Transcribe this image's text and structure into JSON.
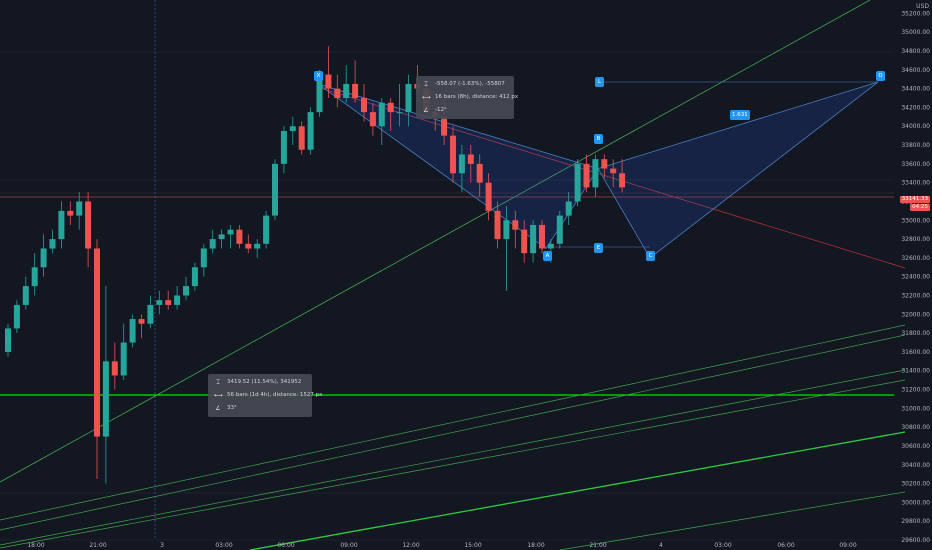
{
  "axis": {
    "currency": "USD",
    "price_ticks": [
      "35200.00",
      "35000.00",
      "34800.00",
      "34600.00",
      "34400.00",
      "34200.00",
      "34000.00",
      "33800.00",
      "33600.00",
      "33400.00",
      "33200.00",
      "33000.00",
      "32800.00",
      "32600.00",
      "32400.00",
      "32200.00",
      "32000.00",
      "31800.00",
      "31600.00",
      "31400.00",
      "31200.00",
      "31000.00",
      "30800.00",
      "30600.00",
      "30400.00",
      "30200.00",
      "30000.00",
      "29800.00",
      "29600.00"
    ],
    "time_ticks": [
      "18:00",
      "21:00",
      "3",
      "03:00",
      "06:00",
      "09:00",
      "12:00",
      "15:00",
      "18:00",
      "21:00",
      "4",
      "03:00",
      "06:00",
      "09:00"
    ],
    "current_price": "33141.33",
    "countdown": "04:25"
  },
  "measure_boxes": [
    {
      "price_line": "-558.07 (-1.63%), -55807",
      "bars_line": "16 bars (8h), distance: 412 px",
      "angle_line": "-12°"
    },
    {
      "price_line": "3419.52 (11.54%), 341952",
      "bars_line": "56 bars (1d 4h), distance: 1527 px",
      "angle_line": "33°"
    }
  ],
  "pattern_labels": {
    "X": "X",
    "A": "A",
    "B": "B",
    "C": "C",
    "D": "D",
    "L": "L",
    "E": "E",
    "ratio": "1.631"
  },
  "colors": {
    "up": "#26a69a",
    "down": "#ef5350",
    "bg": "#131722",
    "pattern_fill": "#2962ff",
    "green_line": "#00e600"
  },
  "chart_data": {
    "type": "candlestick",
    "timeframe": "30m",
    "y_range": [
      29600,
      35300
    ],
    "candles": [
      [
        31600,
        31900,
        31550,
        31850
      ],
      [
        31850,
        32150,
        31800,
        32100
      ],
      [
        32100,
        32400,
        32050,
        32300
      ],
      [
        32300,
        32650,
        32200,
        32500
      ],
      [
        32500,
        32850,
        32400,
        32700
      ],
      [
        32700,
        32900,
        32650,
        32800
      ],
      [
        32800,
        33200,
        32700,
        33100
      ],
      [
        33100,
        33200,
        32950,
        33050
      ],
      [
        33050,
        33300,
        32900,
        33200
      ],
      [
        33200,
        33300,
        32500,
        32700
      ],
      [
        32700,
        32800,
        30250,
        30700
      ],
      [
        30700,
        32300,
        30200,
        31500
      ],
      [
        31500,
        31700,
        31200,
        31350
      ],
      [
        31350,
        31900,
        31300,
        31700
      ],
      [
        31700,
        32000,
        31650,
        31950
      ],
      [
        31950,
        32000,
        31750,
        31900
      ],
      [
        31900,
        32200,
        31850,
        32100
      ],
      [
        32100,
        32250,
        32000,
        32150
      ],
      [
        32150,
        32250,
        32050,
        32100
      ],
      [
        32100,
        32300,
        32050,
        32200
      ],
      [
        32200,
        32400,
        32150,
        32300
      ],
      [
        32300,
        32550,
        32250,
        32500
      ],
      [
        32500,
        32750,
        32400,
        32700
      ],
      [
        32700,
        32900,
        32650,
        32800
      ],
      [
        32800,
        32900,
        32700,
        32850
      ],
      [
        32850,
        32950,
        32700,
        32900
      ],
      [
        32900,
        32950,
        32700,
        32750
      ],
      [
        32750,
        32850,
        32650,
        32700
      ],
      [
        32700,
        32800,
        32600,
        32750
      ],
      [
        32750,
        33100,
        32700,
        33050
      ],
      [
        33050,
        33650,
        33000,
        33600
      ],
      [
        33600,
        34000,
        33500,
        33950
      ],
      [
        33950,
        34100,
        33800,
        34000
      ],
      [
        34000,
        34050,
        33700,
        33750
      ],
      [
        33750,
        34200,
        33700,
        34150
      ],
      [
        34150,
        34600,
        34100,
        34550
      ],
      [
        34550,
        34850,
        34300,
        34400
      ],
      [
        34400,
        34550,
        34200,
        34300
      ],
      [
        34300,
        34650,
        34250,
        34450
      ],
      [
        34450,
        34700,
        34250,
        34300
      ],
      [
        34300,
        34450,
        34050,
        34150
      ],
      [
        34150,
        34250,
        33900,
        34000
      ],
      [
        34000,
        34300,
        33800,
        34250
      ],
      [
        34250,
        34300,
        33950,
        34150
      ],
      [
        34150,
        34450,
        34000,
        34150
      ],
      [
        34150,
        34550,
        34000,
        34450
      ],
      [
        34450,
        34650,
        34350,
        34400
      ],
      [
        34400,
        34450,
        34100,
        34150
      ],
      [
        34150,
        34200,
        33950,
        34100
      ],
      [
        34100,
        34300,
        33800,
        33900
      ],
      [
        33900,
        34000,
        33400,
        33500
      ],
      [
        33500,
        33800,
        33300,
        33700
      ],
      [
        33700,
        33800,
        33400,
        33600
      ],
      [
        33600,
        33700,
        33250,
        33400
      ],
      [
        33400,
        33500,
        33000,
        33100
      ],
      [
        33100,
        33200,
        32700,
        32800
      ],
      [
        32800,
        33150,
        32250,
        33000
      ],
      [
        33000,
        33100,
        32700,
        32900
      ],
      [
        32900,
        33000,
        32550,
        32650
      ],
      [
        32650,
        33000,
        32550,
        32950
      ],
      [
        32950,
        33000,
        32650,
        32700
      ],
      [
        32700,
        32800,
        32550,
        32750
      ],
      [
        32750,
        33100,
        32700,
        33050
      ],
      [
        33050,
        33300,
        32950,
        33200
      ],
      [
        33200,
        33650,
        33150,
        33600
      ],
      [
        33600,
        33700,
        33300,
        33350
      ],
      [
        33350,
        33700,
        33250,
        33650
      ],
      [
        33650,
        33700,
        33450,
        33550
      ],
      [
        33550,
        33650,
        33350,
        33500
      ],
      [
        33500,
        33650,
        33300,
        33350
      ]
    ],
    "harmonic_pattern": {
      "X": 34450,
      "A": 32700,
      "B": 33550,
      "C": 32600,
      "D": 34470,
      "ratio": "1.631"
    }
  }
}
